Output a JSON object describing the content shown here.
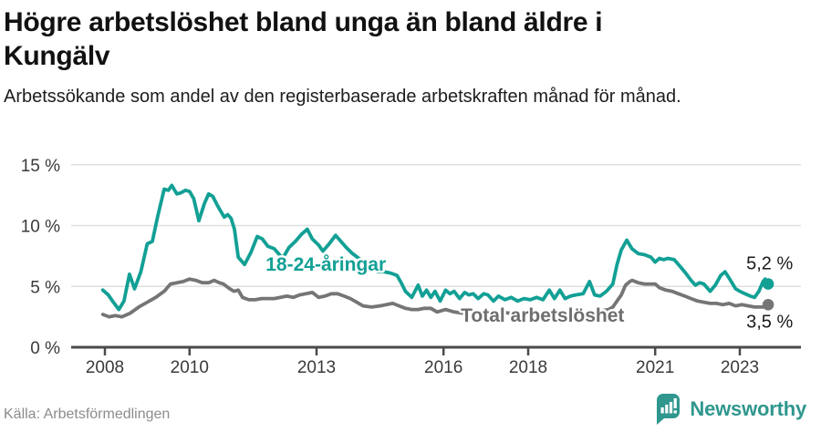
{
  "header": {
    "title": "Högre arbetslöshet bland unga än bland äldre i Kungälv",
    "subtitle": "Arbetssökande som andel av den registerbaserade arbetskraften månad för månad."
  },
  "footer": {
    "source": "Källa: Arbetsförmedlingen",
    "brand_name": "Newsworthy",
    "brand_color": "#2f978e"
  },
  "colors": {
    "accent_teal": "#12a095",
    "line_gray": "#757575",
    "grid": "#e0e0e0",
    "axis": "#4a4a4a",
    "tick_text": "#3a3a3a",
    "end_label_text": "#1a1a1a"
  },
  "chart_data": {
    "type": "line",
    "title": "Högre arbetslöshet bland unga än bland äldre i Kungälv",
    "xlabel": "",
    "ylabel": "",
    "grid": "horizontal",
    "legend": "inline-labels",
    "x_axis": {
      "tick_years": [
        2008,
        2010,
        2013,
        2016,
        2018,
        2021,
        2023
      ],
      "tick_labels": [
        "2008",
        "2010",
        "2013",
        "2016",
        "2018",
        "2021",
        "2023"
      ],
      "range": [
        2007.2,
        2024.4
      ]
    },
    "y_axis": {
      "tick_values": [
        0,
        5,
        10,
        15
      ],
      "tick_labels": [
        "0 %",
        "5 %",
        "10 %",
        "15 %"
      ],
      "range": [
        0,
        15
      ]
    },
    "series": [
      {
        "name": "18-24-åringar",
        "color": "#12a095",
        "label_color": "#12a095",
        "label_at": [
          2013.22,
          6.3
        ],
        "end_label": "5,2 %",
        "end_label_side": "above",
        "end_value": 5.2,
        "points": [
          [
            2007.95,
            4.7
          ],
          [
            2008.08,
            4.3
          ],
          [
            2008.2,
            3.7
          ],
          [
            2008.33,
            3.1
          ],
          [
            2008.45,
            3.8
          ],
          [
            2008.58,
            6.0
          ],
          [
            2008.7,
            4.8
          ],
          [
            2008.85,
            6.2
          ],
          [
            2009.0,
            8.5
          ],
          [
            2009.12,
            8.7
          ],
          [
            2009.25,
            10.8
          ],
          [
            2009.4,
            13.0
          ],
          [
            2009.5,
            12.9
          ],
          [
            2009.58,
            13.3
          ],
          [
            2009.7,
            12.6
          ],
          [
            2009.8,
            12.7
          ],
          [
            2009.9,
            12.9
          ],
          [
            2010.0,
            12.8
          ],
          [
            2010.1,
            12.2
          ],
          [
            2010.22,
            10.4
          ],
          [
            2010.35,
            11.8
          ],
          [
            2010.45,
            12.6
          ],
          [
            2010.55,
            12.4
          ],
          [
            2010.65,
            11.7
          ],
          [
            2010.75,
            11.1
          ],
          [
            2010.82,
            10.7
          ],
          [
            2010.9,
            10.9
          ],
          [
            2010.98,
            10.6
          ],
          [
            2011.06,
            9.7
          ],
          [
            2011.15,
            7.4
          ],
          [
            2011.3,
            6.8
          ],
          [
            2011.45,
            7.8
          ],
          [
            2011.6,
            9.1
          ],
          [
            2011.72,
            8.9
          ],
          [
            2011.85,
            8.3
          ],
          [
            2012.0,
            8.1
          ],
          [
            2012.2,
            7.3
          ],
          [
            2012.35,
            8.2
          ],
          [
            2012.5,
            8.7
          ],
          [
            2012.65,
            9.3
          ],
          [
            2012.78,
            9.7
          ],
          [
            2012.9,
            8.9
          ],
          [
            2013.05,
            8.4
          ],
          [
            2013.15,
            7.9
          ],
          [
            2013.3,
            8.5
          ],
          [
            2013.45,
            9.2
          ],
          [
            2013.55,
            8.8
          ],
          [
            2013.7,
            8.2
          ],
          [
            2013.85,
            7.7
          ],
          [
            2014.0,
            7.3
          ],
          [
            2014.15,
            6.9
          ],
          [
            2014.3,
            6.5
          ],
          [
            2014.45,
            6.2
          ],
          [
            2014.6,
            6.2
          ],
          [
            2014.75,
            6.1
          ],
          [
            2014.9,
            5.9
          ],
          [
            2015.0,
            5.3
          ],
          [
            2015.1,
            4.6
          ],
          [
            2015.25,
            4.1
          ],
          [
            2015.4,
            5.1
          ],
          [
            2015.5,
            4.2
          ],
          [
            2015.6,
            4.7
          ],
          [
            2015.7,
            4.1
          ],
          [
            2015.8,
            4.6
          ],
          [
            2015.92,
            3.8
          ],
          [
            2016.05,
            4.7
          ],
          [
            2016.15,
            4.4
          ],
          [
            2016.25,
            4.6
          ],
          [
            2016.38,
            4.0
          ],
          [
            2016.5,
            4.5
          ],
          [
            2016.6,
            4.3
          ],
          [
            2016.7,
            4.4
          ],
          [
            2016.82,
            4.0
          ],
          [
            2016.95,
            4.4
          ],
          [
            2017.05,
            4.3
          ],
          [
            2017.18,
            3.8
          ],
          [
            2017.3,
            4.2
          ],
          [
            2017.45,
            3.9
          ],
          [
            2017.6,
            4.1
          ],
          [
            2017.75,
            3.8
          ],
          [
            2017.9,
            4.0
          ],
          [
            2018.05,
            3.9
          ],
          [
            2018.2,
            4.1
          ],
          [
            2018.35,
            3.9
          ],
          [
            2018.5,
            4.7
          ],
          [
            2018.62,
            4.0
          ],
          [
            2018.75,
            4.7
          ],
          [
            2018.87,
            4.0
          ],
          [
            2019.0,
            4.2
          ],
          [
            2019.12,
            4.3
          ],
          [
            2019.3,
            4.4
          ],
          [
            2019.45,
            5.4
          ],
          [
            2019.57,
            4.3
          ],
          [
            2019.7,
            4.2
          ],
          [
            2019.85,
            4.6
          ],
          [
            2020.0,
            5.2
          ],
          [
            2020.1,
            6.8
          ],
          [
            2020.2,
            8.0
          ],
          [
            2020.33,
            8.8
          ],
          [
            2020.45,
            8.1
          ],
          [
            2020.6,
            7.7
          ],
          [
            2020.75,
            7.6
          ],
          [
            2020.9,
            7.4
          ],
          [
            2021.0,
            7.0
          ],
          [
            2021.1,
            7.3
          ],
          [
            2021.2,
            7.2
          ],
          [
            2021.3,
            7.3
          ],
          [
            2021.45,
            7.2
          ],
          [
            2021.6,
            6.6
          ],
          [
            2021.72,
            6.1
          ],
          [
            2021.85,
            5.5
          ],
          [
            2021.95,
            5.1
          ],
          [
            2022.05,
            5.3
          ],
          [
            2022.15,
            5.2
          ],
          [
            2022.3,
            4.6
          ],
          [
            2022.42,
            5.1
          ],
          [
            2022.55,
            5.9
          ],
          [
            2022.65,
            6.2
          ],
          [
            2022.78,
            5.5
          ],
          [
            2022.9,
            4.8
          ],
          [
            2023.0,
            4.6
          ],
          [
            2023.12,
            4.4
          ],
          [
            2023.25,
            4.2
          ],
          [
            2023.35,
            4.1
          ],
          [
            2023.45,
            4.6
          ],
          [
            2023.55,
            5.4
          ],
          [
            2023.6,
            5.6
          ],
          [
            2023.67,
            5.2
          ]
        ]
      },
      {
        "name": "Total arbetslöshet",
        "color": "#757575",
        "label_color": "#6e6e6e",
        "label_at": [
          2018.34,
          2.1
        ],
        "end_label": "3,5 %",
        "end_label_side": "below",
        "end_value": 3.5,
        "points": [
          [
            2007.95,
            2.7
          ],
          [
            2008.1,
            2.5
          ],
          [
            2008.25,
            2.6
          ],
          [
            2008.4,
            2.5
          ],
          [
            2008.6,
            2.8
          ],
          [
            2008.8,
            3.3
          ],
          [
            2009.0,
            3.7
          ],
          [
            2009.2,
            4.1
          ],
          [
            2009.4,
            4.6
          ],
          [
            2009.55,
            5.2
          ],
          [
            2009.7,
            5.3
          ],
          [
            2009.85,
            5.4
          ],
          [
            2010.0,
            5.6
          ],
          [
            2010.15,
            5.5
          ],
          [
            2010.3,
            5.3
          ],
          [
            2010.45,
            5.3
          ],
          [
            2010.58,
            5.5
          ],
          [
            2010.7,
            5.3
          ],
          [
            2010.8,
            5.2
          ],
          [
            2010.95,
            4.8
          ],
          [
            2011.05,
            4.6
          ],
          [
            2011.15,
            4.7
          ],
          [
            2011.25,
            4.1
          ],
          [
            2011.4,
            3.9
          ],
          [
            2011.55,
            3.9
          ],
          [
            2011.7,
            4.0
          ],
          [
            2011.85,
            4.0
          ],
          [
            2012.0,
            4.0
          ],
          [
            2012.15,
            4.1
          ],
          [
            2012.3,
            4.2
          ],
          [
            2012.45,
            4.1
          ],
          [
            2012.6,
            4.3
          ],
          [
            2012.75,
            4.4
          ],
          [
            2012.9,
            4.5
          ],
          [
            2013.05,
            4.1
          ],
          [
            2013.2,
            4.2
          ],
          [
            2013.35,
            4.4
          ],
          [
            2013.5,
            4.4
          ],
          [
            2013.65,
            4.2
          ],
          [
            2013.8,
            4.0
          ],
          [
            2013.95,
            3.7
          ],
          [
            2014.1,
            3.4
          ],
          [
            2014.3,
            3.3
          ],
          [
            2014.5,
            3.4
          ],
          [
            2014.65,
            3.5
          ],
          [
            2014.8,
            3.6
          ],
          [
            2014.95,
            3.4
          ],
          [
            2015.1,
            3.2
          ],
          [
            2015.25,
            3.1
          ],
          [
            2015.4,
            3.1
          ],
          [
            2015.55,
            3.2
          ],
          [
            2015.7,
            3.2
          ],
          [
            2015.85,
            2.9
          ],
          [
            2016.05,
            3.1
          ],
          [
            2016.25,
            2.9
          ],
          [
            2016.45,
            2.8
          ],
          [
            2016.6,
            2.9
          ],
          [
            2016.75,
            2.8
          ],
          [
            2016.95,
            2.9
          ],
          [
            2017.15,
            2.8
          ],
          [
            2017.35,
            2.9
          ],
          [
            2017.55,
            2.8
          ],
          [
            2017.75,
            2.9
          ],
          [
            2017.95,
            2.8
          ],
          [
            2018.15,
            2.9
          ],
          [
            2018.35,
            2.8
          ],
          [
            2018.55,
            2.9
          ],
          [
            2018.65,
            3.0
          ],
          [
            2018.8,
            2.8
          ],
          [
            2019.0,
            2.9
          ],
          [
            2019.15,
            2.8
          ],
          [
            2019.35,
            2.8
          ],
          [
            2019.55,
            2.8
          ],
          [
            2019.75,
            3.0
          ],
          [
            2019.9,
            3.1
          ],
          [
            2020.0,
            3.3
          ],
          [
            2020.1,
            3.8
          ],
          [
            2020.2,
            4.3
          ],
          [
            2020.3,
            5.1
          ],
          [
            2020.4,
            5.4
          ],
          [
            2020.46,
            5.5
          ],
          [
            2020.6,
            5.3
          ],
          [
            2020.75,
            5.2
          ],
          [
            2020.9,
            5.2
          ],
          [
            2021.0,
            5.2
          ],
          [
            2021.1,
            4.9
          ],
          [
            2021.25,
            4.7
          ],
          [
            2021.4,
            4.6
          ],
          [
            2021.55,
            4.4
          ],
          [
            2021.7,
            4.2
          ],
          [
            2021.85,
            4.0
          ],
          [
            2022.0,
            3.8
          ],
          [
            2022.15,
            3.7
          ],
          [
            2022.3,
            3.6
          ],
          [
            2022.45,
            3.6
          ],
          [
            2022.6,
            3.5
          ],
          [
            2022.75,
            3.6
          ],
          [
            2022.9,
            3.4
          ],
          [
            2023.05,
            3.5
          ],
          [
            2023.2,
            3.4
          ],
          [
            2023.35,
            3.3
          ],
          [
            2023.5,
            3.3
          ],
          [
            2023.58,
            3.3
          ],
          [
            2023.67,
            3.5
          ]
        ]
      }
    ]
  }
}
